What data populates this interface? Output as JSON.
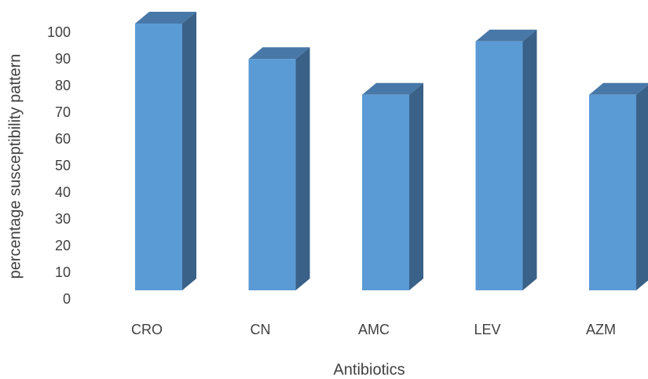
{
  "chart_data": {
    "type": "bar3d",
    "categories": [
      "CRO",
      "CN",
      "AMC",
      "LEV",
      "AZM"
    ],
    "values": [
      100,
      86.7,
      73.3,
      93.3,
      73.3
    ],
    "color": "#5b9bd5",
    "ylim": [
      0,
      100
    ],
    "yticks": [
      0,
      10,
      20,
      30,
      40,
      50,
      60,
      70,
      80,
      90,
      100
    ],
    "xlabel": "Antibiotics",
    "ylabel": "percentage susceptibility pattern",
    "grid": false
  }
}
